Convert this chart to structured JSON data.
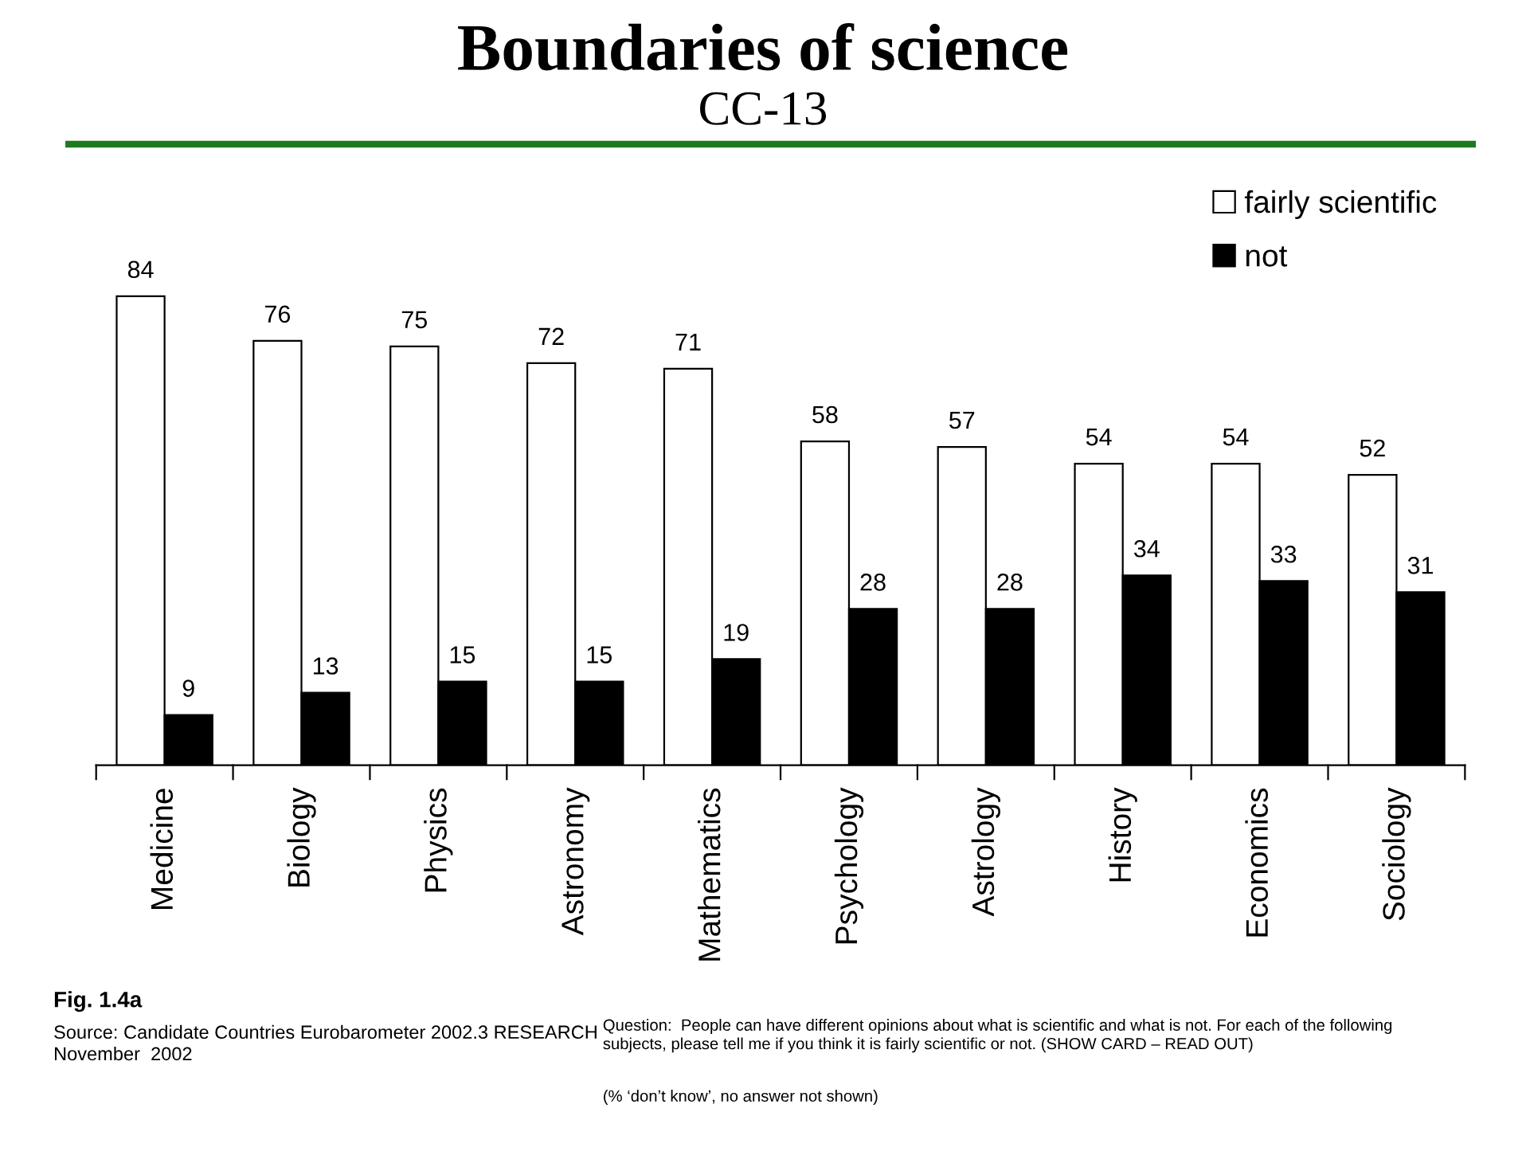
{
  "chart_data": {
    "type": "bar",
    "title": "Boundaries of science",
    "subtitle": "CC-13",
    "categories": [
      "Medicine",
      "Biology",
      "Physics",
      "Astronomy",
      "Mathematics",
      "Psychology",
      "Astrology",
      "History",
      "Economics",
      "Sociology"
    ],
    "series": [
      {
        "name": "fairly scientific",
        "color": "#ffffff",
        "values": [
          84,
          76,
          75,
          72,
          71,
          58,
          57,
          54,
          54,
          52
        ]
      },
      {
        "name": "not",
        "color": "#000000",
        "values": [
          9,
          13,
          15,
          15,
          19,
          28,
          28,
          34,
          33,
          31
        ]
      }
    ],
    "data_labels": true,
    "legend": "top right",
    "grid": false,
    "tick_labels": "x",
    "annotations": [
      "Fig. 1.4a",
      "Source: Candidate Countries Eurobarometer 2002.3 RESEARCH\nNovember  2002",
      "Question:  People can have different opinions about what is scientific and what is not. For each of the following\nsubjects, please tell me if you think it is fairly scientific or not. (SHOW CARD – READ OUT)",
      "(% ‘don’t know’, no answer not shown)"
    ]
  }
}
